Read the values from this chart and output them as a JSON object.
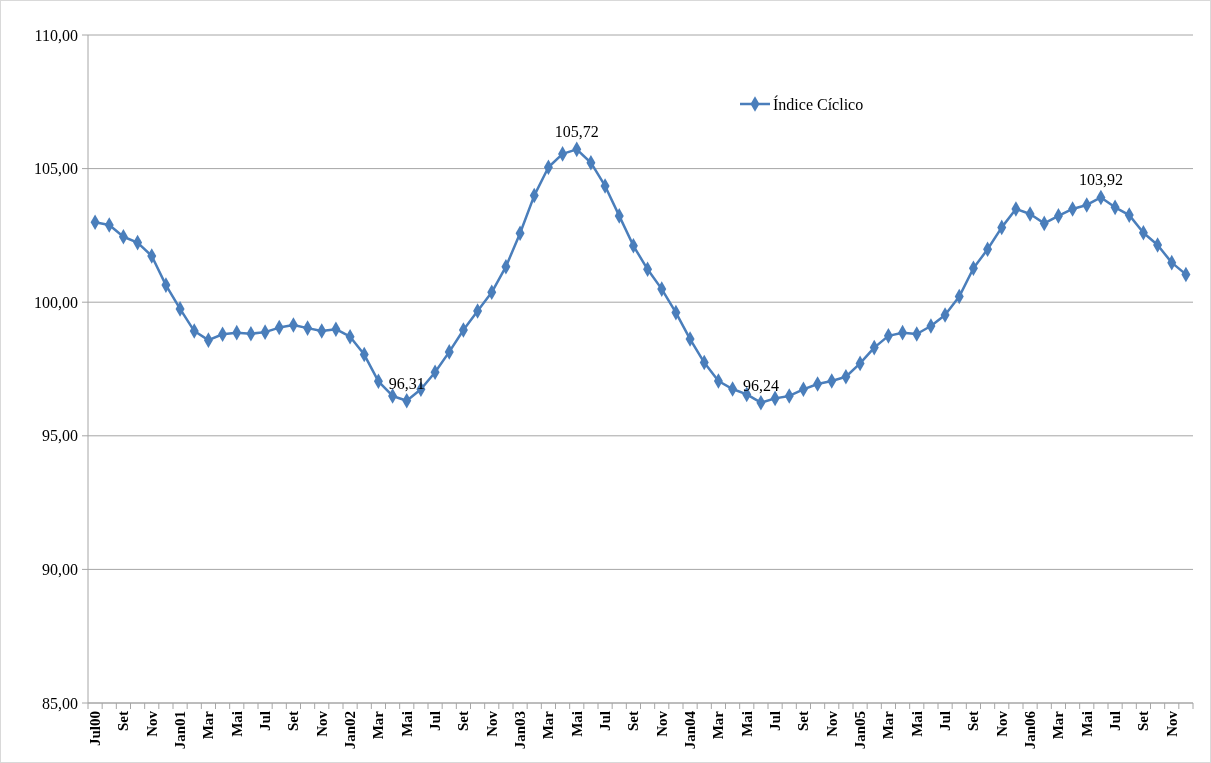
{
  "chart_data": {
    "type": "line",
    "categories": [
      "Jul00",
      null,
      "Set",
      null,
      "Nov",
      null,
      "Jan01",
      null,
      "Mar",
      null,
      "Mai",
      null,
      "Jul",
      null,
      "Set",
      null,
      "Nov",
      null,
      "Jan02",
      null,
      "Mar",
      null,
      "Mai",
      null,
      "Jul",
      null,
      "Set",
      null,
      "Nov",
      null,
      "Jan03",
      null,
      "Mar",
      null,
      "Mai",
      null,
      "Jul",
      null,
      "Set",
      null,
      "Nov",
      null,
      "Jan04",
      null,
      "Mar",
      null,
      "Mai",
      null,
      "Jul",
      null,
      "Set",
      null,
      "Nov",
      null,
      "Jan05",
      null,
      "Mar",
      null,
      "Mai",
      null,
      "Jul",
      null,
      "Set",
      null,
      "Nov",
      null,
      "Jan06",
      null,
      "Mar",
      null,
      "Mai",
      null,
      "Jul",
      null,
      "Set",
      null,
      "Nov",
      null
    ],
    "series": [
      {
        "name": "Índice Cíclico",
        "color": "#4a7ebb",
        "values": [
          102.99,
          102.89,
          102.45,
          102.23,
          101.73,
          100.64,
          99.75,
          98.92,
          98.58,
          98.8,
          98.86,
          98.82,
          98.88,
          99.05,
          99.15,
          99.03,
          98.92,
          98.99,
          98.71,
          98.04,
          97.04,
          96.49,
          96.31,
          96.74,
          97.38,
          98.14,
          98.96,
          99.67,
          100.37,
          101.33,
          102.58,
          103.99,
          105.05,
          105.55,
          105.72,
          105.22,
          104.35,
          103.23,
          102.11,
          101.23,
          100.49,
          99.61,
          98.62,
          97.74,
          97.05,
          96.75,
          96.55,
          96.24,
          96.4,
          96.49,
          96.74,
          96.94,
          97.05,
          97.21,
          97.71,
          98.3,
          98.74,
          98.86,
          98.81,
          99.11,
          99.52,
          100.21,
          101.27,
          101.98,
          102.8,
          103.49,
          103.3,
          102.95,
          103.23,
          103.49,
          103.64,
          103.92,
          103.55,
          103.26,
          102.6,
          102.14,
          101.48,
          101.04
        ],
        "value_labels": [
          null,
          null,
          null,
          null,
          null,
          null,
          null,
          null,
          null,
          null,
          null,
          null,
          null,
          null,
          null,
          null,
          null,
          null,
          null,
          null,
          null,
          null,
          "96,31",
          null,
          null,
          null,
          null,
          null,
          null,
          null,
          null,
          null,
          null,
          null,
          "105,72",
          null,
          null,
          null,
          null,
          null,
          null,
          null,
          null,
          null,
          null,
          null,
          null,
          "96,24",
          null,
          null,
          null,
          null,
          null,
          null,
          null,
          null,
          null,
          null,
          null,
          null,
          null,
          null,
          null,
          null,
          null,
          null,
          null,
          null,
          null,
          null,
          null,
          "103,92",
          null,
          null,
          null,
          null,
          null,
          null
        ]
      }
    ],
    "ylim": [
      85,
      110
    ],
    "yticks": [
      {
        "value": 85,
        "label": "85,00"
      },
      {
        "value": 90,
        "label": "90,00"
      },
      {
        "value": 95,
        "label": "95,00"
      },
      {
        "value": 100,
        "label": "100,00"
      },
      {
        "value": 105,
        "label": "105,00"
      },
      {
        "value": 110,
        "label": "110,00"
      }
    ],
    "grid": "y",
    "legend": "top",
    "marker": "diamond",
    "line_style": "solid"
  }
}
